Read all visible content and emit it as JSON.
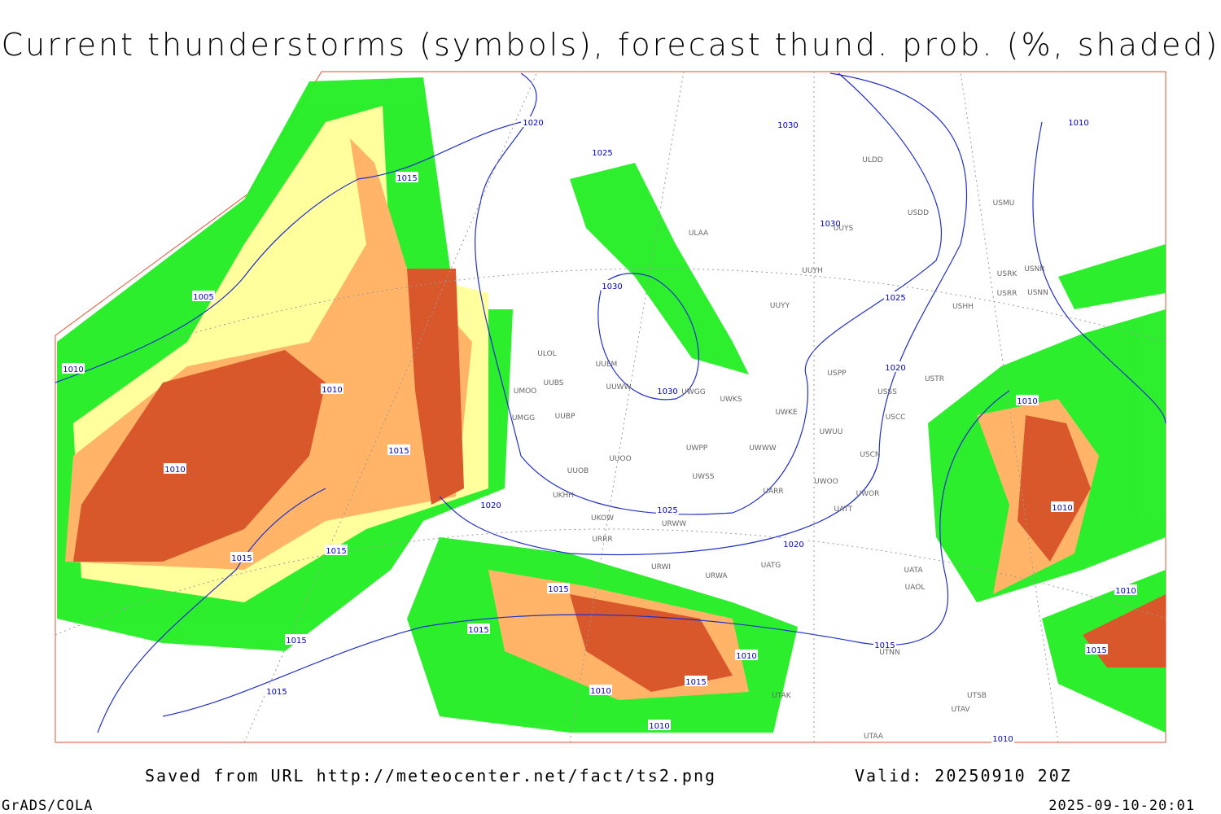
{
  "header": {
    "title": "Current thunderstorms (symbols), forecast thund. prob. (%, shaded)"
  },
  "isobar_labels": [
    "1020",
    "1015",
    "1025",
    "1030",
    "1030",
    "1010",
    "1005",
    "1010",
    "1010",
    "1030",
    "1025",
    "1020",
    "1030",
    "1015",
    "1010",
    "1010",
    "1010",
    "1025",
    "1020",
    "1020",
    "1015",
    "1015",
    "1015",
    "1015",
    "1015",
    "1015",
    "1010",
    "1015",
    "1010",
    "1010",
    "1015",
    "1010",
    "1015",
    "1010"
  ],
  "stations": [
    "ULDD",
    "USDD",
    "USMU",
    "ULAA",
    "UUYS",
    "UUYH",
    "USRK",
    "USNR",
    "USRR",
    "USNN",
    "USHH",
    "UUYY",
    "ULOL",
    "UUEM",
    "USPP",
    "USTR",
    "UUWW",
    "UUBS",
    "UMOO",
    "UWGG",
    "UWKS",
    "USSS",
    "UWKE",
    "UUBP",
    "UMGG",
    "USCC",
    "UWWW",
    "UWPP",
    "UWUU",
    "USCN",
    "UUOO",
    "UUOB",
    "UWSS",
    "UARR",
    "UWOO",
    "UWOR",
    "UKHH",
    "UKOW",
    "UATT",
    "URWW",
    "URRR",
    "URWI",
    "UATG",
    "URWA",
    "UATA",
    "UAOL",
    "UTNN",
    "UTAK",
    "UTSB",
    "UTAV",
    "UTAA"
  ],
  "footer": {
    "source": "Saved from URL http://meteocenter.net/fact/ts2.png",
    "valid": "Valid: 20250910 20Z",
    "credit": "GrADS/COLA",
    "timestamp": "2025-09-10-20:01"
  }
}
